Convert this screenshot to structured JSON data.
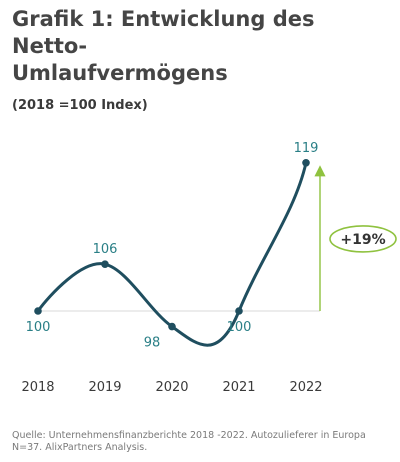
{
  "header": {
    "title_line1": "Grafik 1: Entwicklung des Netto-",
    "title_line2": "Umlaufvermögens",
    "subtitle": "(2018 =100 Index)"
  },
  "footer": {
    "source_line1": "Quelle: Unternehmensfinanzberichte 2018 -2022. Autozulieferer in Europa",
    "source_line2": "N=37.  AlixPartners Analysis."
  },
  "colors": {
    "line": "#1f4e5f",
    "label": "#2a7f86",
    "arrow": "#8fc23f",
    "axis": "#3a3a3a"
  },
  "chart_data": {
    "type": "line",
    "title": "Grafik 1: Entwicklung des Netto-Umlaufvermögens",
    "subtitle": "(2018 =100 Index)",
    "categories": [
      "2018",
      "2019",
      "2020",
      "2021",
      "2022"
    ],
    "values": [
      100,
      106,
      98,
      100,
      119
    ],
    "data_labels": [
      "100",
      "106",
      "98",
      "100",
      "119"
    ],
    "smooth": true,
    "grid": false,
    "annotation": {
      "text": "+19%",
      "from": 100,
      "to": 119,
      "at": "2022"
    }
  }
}
